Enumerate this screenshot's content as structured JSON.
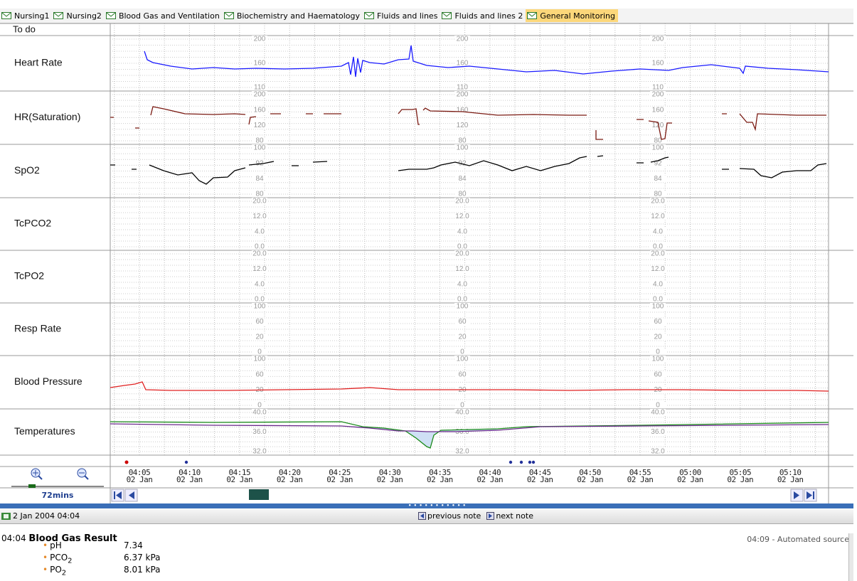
{
  "tabs": [
    "Nursing1",
    "Nursing2",
    "Blood Gas and Ventilation",
    "Biochemistry and Haematology",
    "Fluids and lines",
    "Fluids and lines 2",
    "General Monitoring"
  ],
  "active_tab": 6,
  "todo_label": "To do",
  "rows": [
    {
      "label": "Heart Rate",
      "scale": [
        "200",
        "160",
        "110"
      ]
    },
    {
      "label": "HR(Saturation)",
      "scale": [
        "200",
        "160",
        "120",
        "80"
      ]
    },
    {
      "label": "SpO2",
      "scale": [
        "100",
        "92",
        "84",
        "80"
      ]
    },
    {
      "label": "TcPCO2",
      "scale": [
        "20.0",
        "12.0",
        "4.0",
        "0.0"
      ]
    },
    {
      "label": "TcPO2",
      "scale": [
        "20.0",
        "12.0",
        "4.0",
        "0.0"
      ]
    },
    {
      "label": "Resp Rate",
      "scale": [
        "100",
        "60",
        "20",
        "0"
      ]
    },
    {
      "label": "Blood Pressure",
      "scale": [
        "100",
        "60",
        "20",
        "0"
      ]
    },
    {
      "label": "Temperatures",
      "scale": [
        "40.0",
        "36.0",
        "32.0"
      ]
    }
  ],
  "time_axis": {
    "times": [
      "04:05",
      "04:10",
      "04:15",
      "04:20",
      "04:25",
      "04:30",
      "04:35",
      "04:40",
      "04:45",
      "04:50",
      "04:55",
      "05:00",
      "05:05",
      "05:10"
    ],
    "date": "02 Jan"
  },
  "zoom_label": "72mins",
  "note_bar": {
    "date": "2 Jan 2004 04:04",
    "previous": "previous note",
    "next": "next note"
  },
  "note": {
    "time": "04:04",
    "title": "Blood Gas Result",
    "source": "04:09 - Automated source",
    "items": [
      {
        "name": "pH",
        "value": "7.34"
      },
      {
        "name": "PCO",
        "sub": "2",
        "value": "6.37 kPa"
      },
      {
        "name": "PO",
        "sub": "2",
        "value": "8.01 kPa"
      }
    ]
  }
}
